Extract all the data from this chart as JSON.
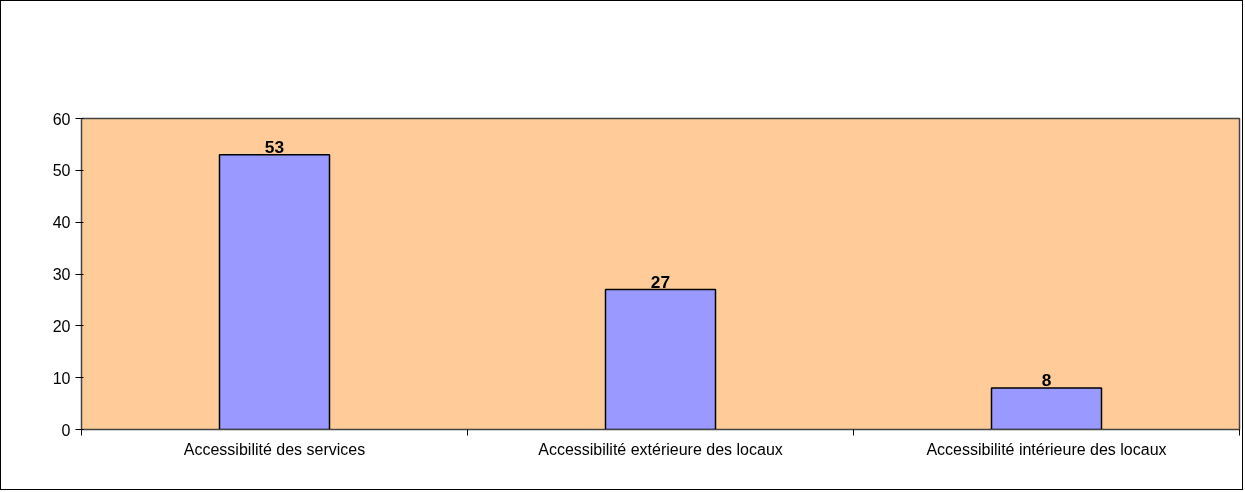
{
  "chart_data": {
    "type": "bar",
    "categories": [
      "Accessibilité des services",
      "Accessibilité extérieure des locaux",
      "Accessibilité intérieure des locaux"
    ],
    "values": [
      53,
      27,
      8
    ],
    "color": "#9999ff",
    "ylim": [
      0,
      60
    ],
    "yticks": [
      0,
      10,
      20,
      30,
      40,
      50,
      60
    ],
    "data_labels": true,
    "grid": false
  }
}
